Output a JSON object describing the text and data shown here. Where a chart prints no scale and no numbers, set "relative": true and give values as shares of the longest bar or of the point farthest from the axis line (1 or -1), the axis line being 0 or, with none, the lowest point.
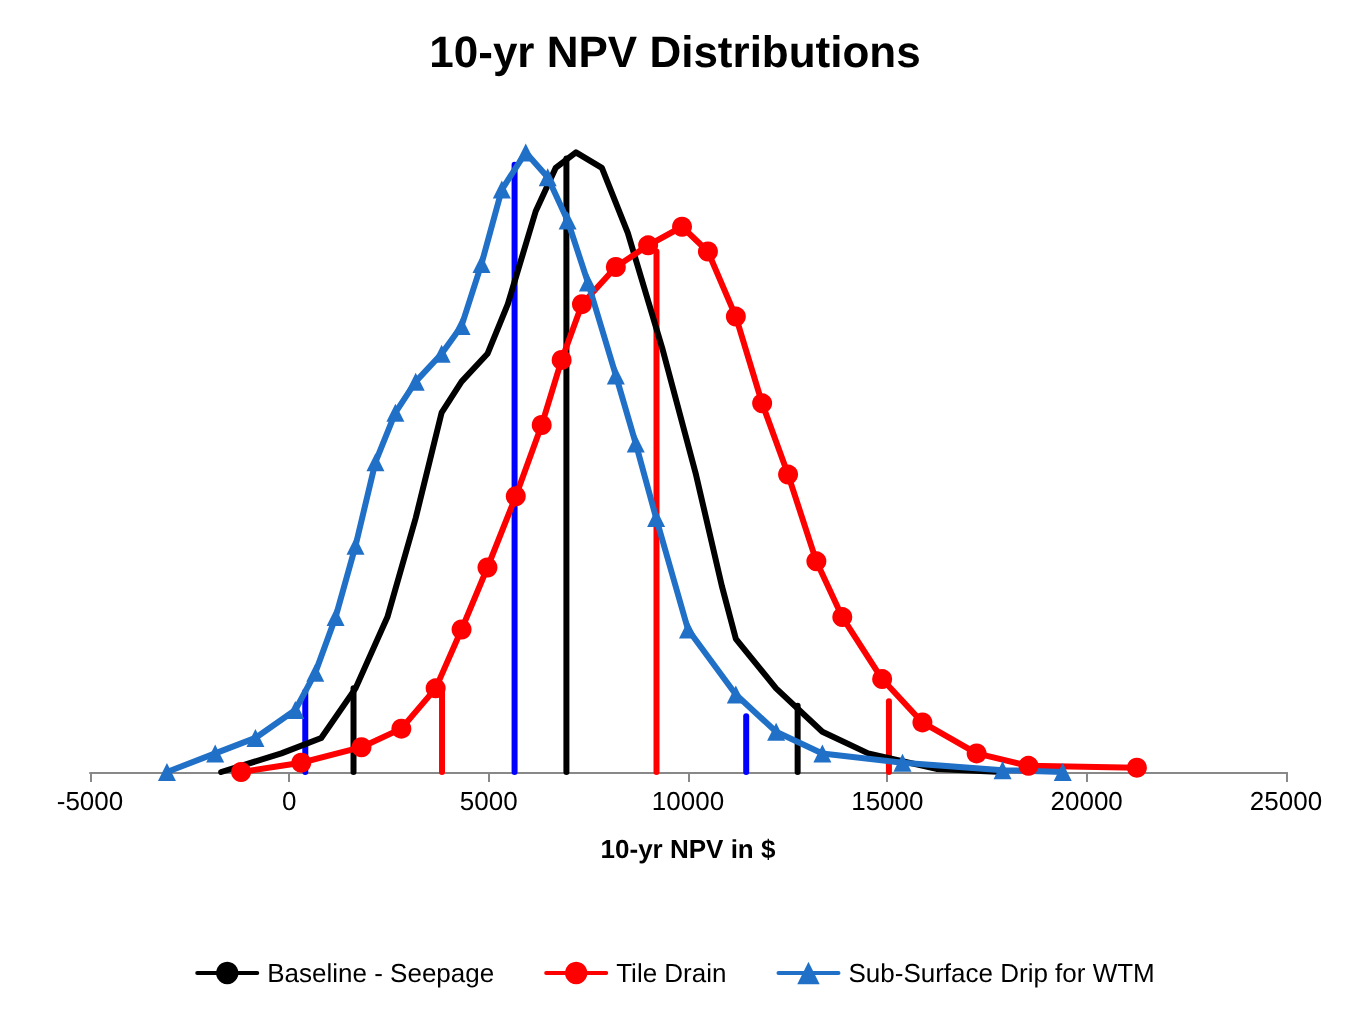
{
  "chart_data": {
    "type": "line",
    "title": "10-yr NPV Distributions",
    "xlabel": "10-yr NPV in $",
    "relative": true,
    "xlim": [
      -5000,
      25000
    ],
    "xticks": [
      -5000,
      0,
      5000,
      10000,
      15000,
      20000,
      25000
    ],
    "grid": false,
    "legend": "bottom",
    "series": [
      {
        "name": "Baseline - Seepage",
        "color": "#000000",
        "marker": "none",
        "x": [
          -1710,
          -200,
          800,
          1660,
          2460,
          3170,
          3820,
          4320,
          4970,
          5480,
          6180,
          6680,
          7190,
          7840,
          8490,
          9350,
          10200,
          10850,
          11200,
          12210,
          13370,
          14520,
          16230,
          17890
        ],
        "values": [
          0,
          0.03,
          0.055,
          0.135,
          0.25,
          0.41,
          0.58,
          0.63,
          0.675,
          0.755,
          0.905,
          0.975,
          1.0,
          0.975,
          0.87,
          0.685,
          0.48,
          0.3,
          0.215,
          0.135,
          0.065,
          0.03,
          0.005,
          0
        ]
      },
      {
        "name": "Tile Drain",
        "color": "#ff0000",
        "marker": "circle",
        "x": [
          -1210,
          300,
          1810,
          2810,
          3670,
          4320,
          4970,
          5680,
          6330,
          6830,
          7340,
          8190,
          9000,
          9850,
          10500,
          11200,
          11860,
          12510,
          13220,
          13870,
          14870,
          15880,
          17240,
          18540,
          21260
        ],
        "values": [
          0,
          0.015,
          0.04,
          0.07,
          0.135,
          0.23,
          0.33,
          0.445,
          0.56,
          0.665,
          0.755,
          0.815,
          0.85,
          0.88,
          0.84,
          0.735,
          0.595,
          0.48,
          0.34,
          0.25,
          0.15,
          0.08,
          0.03,
          0.01,
          0.007
        ]
      },
      {
        "name": "Sub-Surface Drip for WTM",
        "color": "#2070c8",
        "marker": "triangle",
        "x": [
          -3070,
          -1860,
          -850,
          150,
          650,
          1160,
          1660,
          2160,
          2660,
          3170,
          3820,
          4320,
          4820,
          5330,
          5930,
          6480,
          6980,
          7490,
          8190,
          8690,
          9200,
          10000,
          11200,
          12210,
          13370,
          15380,
          17890,
          19400
        ],
        "values": [
          0,
          0.03,
          0.055,
          0.1,
          0.16,
          0.25,
          0.365,
          0.5,
          0.58,
          0.63,
          0.675,
          0.72,
          0.82,
          0.94,
          1.0,
          0.96,
          0.89,
          0.79,
          0.64,
          0.53,
          0.41,
          0.23,
          0.125,
          0.065,
          0.03,
          0.015,
          0.003,
          0
        ]
      },
      {
        "color": "#000000",
        "marker": "none",
        "x": [
          1610,
          1610
        ],
        "values": [
          0,
          0.135
        ]
      },
      {
        "color": "#000000",
        "marker": "none",
        "x": [
          6950,
          6950
        ],
        "values": [
          0,
          0.99
        ]
      },
      {
        "color": "#000000",
        "marker": "none",
        "x": [
          12750,
          12750
        ],
        "values": [
          0,
          0.107
        ]
      },
      {
        "color": "#ff0000",
        "marker": "none",
        "x": [
          3830,
          3830
        ],
        "values": [
          0,
          0.135
        ]
      },
      {
        "color": "#ff0000",
        "marker": "none",
        "x": [
          9210,
          9210
        ],
        "values": [
          0,
          0.84
        ]
      },
      {
        "color": "#ff0000",
        "marker": "none",
        "x": [
          15040,
          15040
        ],
        "values": [
          0,
          0.114
        ]
      },
      {
        "color": "#0000ff",
        "marker": "none",
        "x": [
          400,
          400
        ],
        "values": [
          0,
          0.13
        ]
      },
      {
        "color": "#0000ff",
        "marker": "none",
        "x": [
          5650,
          5650
        ],
        "values": [
          0,
          0.98
        ]
      },
      {
        "color": "#0000ff",
        "marker": "none",
        "x": [
          11460,
          11460
        ],
        "values": [
          0,
          0.09
        ]
      }
    ]
  }
}
